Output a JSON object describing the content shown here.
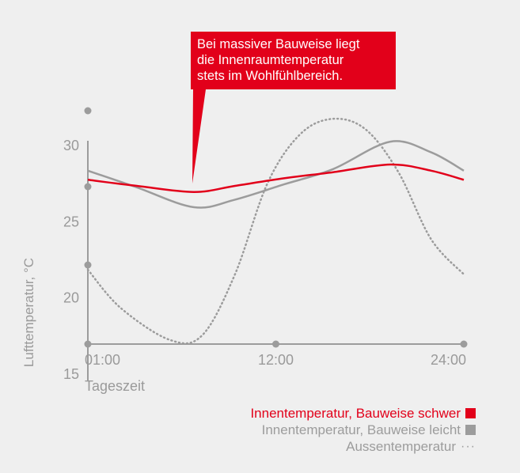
{
  "chart_data": {
    "type": "line",
    "ylabel": "Lufttemperatur, °C",
    "xlabel": "Tageszeit",
    "ylim": [
      15,
      32
    ],
    "xlim": [
      1,
      24
    ],
    "y_ticks": [
      "15",
      "20",
      "25",
      "30"
    ],
    "x_ticks": [
      {
        "x": 1,
        "label": "01:00"
      },
      {
        "x": 12.5,
        "label": "12:00"
      },
      {
        "x": 24,
        "label": "24:00"
      }
    ],
    "annotation": [
      "Bei massiver Bauweise liegt",
      "die Innenraumtemperatur",
      "stets im Wohlfühlbereich."
    ],
    "series": [
      {
        "name": "Innentemperatur, Bauweise schwer",
        "color": "#e2001a",
        "style": "solid",
        "x": [
          1,
          4,
          7.5,
          10,
          13,
          16,
          19.5,
          22,
          24
        ],
        "values": [
          27.7,
          27.3,
          26.9,
          27.3,
          27.8,
          28.2,
          28.7,
          28.3,
          27.7
        ]
      },
      {
        "name": "Innentemperatur, Bauweise leicht",
        "color": "#9c9c9c",
        "style": "solid",
        "x": [
          1,
          4,
          7.5,
          10,
          13,
          16,
          19.5,
          22,
          24
        ],
        "values": [
          28.3,
          27.2,
          25.9,
          26.4,
          27.4,
          28.4,
          30.2,
          29.5,
          28.3
        ]
      },
      {
        "name": "Aussentemperatur",
        "color": "#9c9c9c",
        "style": "dotted",
        "x": [
          1,
          3,
          6,
          8,
          10,
          12,
          14,
          16,
          18,
          20,
          22,
          24
        ],
        "values": [
          21.8,
          19.3,
          17.2,
          17.5,
          21.5,
          27.5,
          30.7,
          31.7,
          31.0,
          28.2,
          23.8,
          21.5
        ]
      }
    ]
  },
  "legend_markers": {
    "schwer": "#e2001a",
    "leicht": "#9c9c9c",
    "aussen": "···"
  }
}
